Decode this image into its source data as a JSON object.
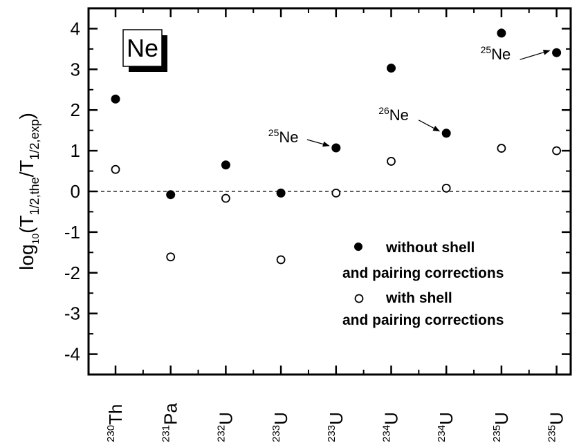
{
  "chart_data": {
    "type": "scatter",
    "categories": [
      {
        "mass": "230",
        "element": "Th"
      },
      {
        "mass": "231",
        "element": "Pa"
      },
      {
        "mass": "232",
        "element": "U"
      },
      {
        "mass": "233",
        "element": "U"
      },
      {
        "mass": "233",
        "element": "U"
      },
      {
        "mass": "234",
        "element": "U"
      },
      {
        "mass": "234",
        "element": "U"
      },
      {
        "mass": "235",
        "element": "U"
      },
      {
        "mass": "235",
        "element": "U"
      }
    ],
    "series": [
      {
        "marker": "filled",
        "values": [
          2.27,
          -0.08,
          0.65,
          -0.04,
          1.07,
          3.03,
          1.43,
          3.89,
          3.41
        ]
      },
      {
        "marker": "open",
        "values": [
          0.54,
          -1.61,
          -0.17,
          -1.68,
          -0.04,
          0.74,
          0.08,
          1.06,
          1.0
        ]
      }
    ],
    "yticks": [
      4,
      3,
      2,
      1,
      0,
      -1,
      -2,
      -3,
      -4
    ],
    "ylim": [
      -4.5,
      4.5
    ],
    "reference_line": 0,
    "ylabel": {
      "prefix": "log",
      "sub1": "10",
      "open": "(T",
      "sub2": "1/2,the",
      "mid": "/T",
      "sub3": "1/2,exp",
      "close": ")"
    },
    "legend": {
      "filled_line1": "without shell",
      "filled_line2": "and pairing corrections",
      "open_line1": "with shell",
      "open_line2": "and pairing corrections"
    },
    "badge": "Ne",
    "annotations": [
      {
        "mass": "25",
        "symbol": "Ne",
        "target_index": 4
      },
      {
        "mass": "26",
        "symbol": "Ne",
        "target_index": 6
      },
      {
        "mass": "25",
        "symbol": "Ne",
        "target_index": 8
      }
    ]
  }
}
